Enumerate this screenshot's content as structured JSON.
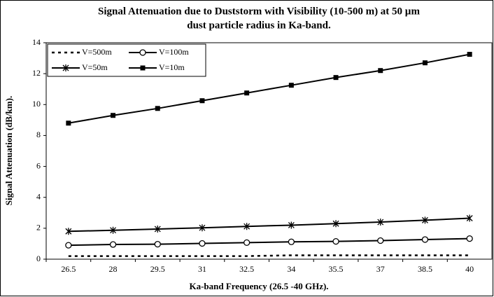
{
  "chart_data": {
    "type": "line",
    "title": [
      "Signal Attenuation due to Duststorm with Visibility (10-500 m) at 50 µm",
      "dust particle radius in Ka-band."
    ],
    "x_label": "Ka-band Frequency (26.5 -40 GHz).",
    "y_label": "Signal Attenuation (dB/km).",
    "categories": [
      "26.5",
      "28",
      "29.5",
      "31",
      "32.5",
      "34",
      "35.5",
      "37",
      "38.5",
      "40"
    ],
    "series": [
      {
        "name": "V=500m",
        "color": "#000000",
        "dash": "dotted",
        "marker": "none",
        "values": [
          0.2,
          0.2,
          0.2,
          0.2,
          0.2,
          0.25,
          0.25,
          0.25,
          0.25,
          0.25
        ]
      },
      {
        "name": "V=100m",
        "color": "#000000",
        "dash": "solid",
        "marker": "circle",
        "values": [
          0.9,
          0.95,
          0.97,
          1.02,
          1.07,
          1.12,
          1.15,
          1.2,
          1.27,
          1.33
        ]
      },
      {
        "name": "V=50m",
        "color": "#000000",
        "dash": "solid",
        "marker": "asterisk",
        "values": [
          1.8,
          1.87,
          1.95,
          2.03,
          2.12,
          2.2,
          2.3,
          2.4,
          2.52,
          2.65
        ]
      },
      {
        "name": "V=10m",
        "color": "#000000",
        "dash": "solid",
        "marker": "square",
        "values": [
          8.8,
          9.3,
          9.75,
          10.25,
          10.75,
          11.25,
          11.75,
          12.2,
          12.7,
          13.25
        ]
      }
    ],
    "ylim": [
      0,
      14
    ],
    "yticks": [
      0,
      2,
      4,
      6,
      8,
      10,
      12,
      14
    ],
    "grid": false,
    "legend": "top-left"
  }
}
